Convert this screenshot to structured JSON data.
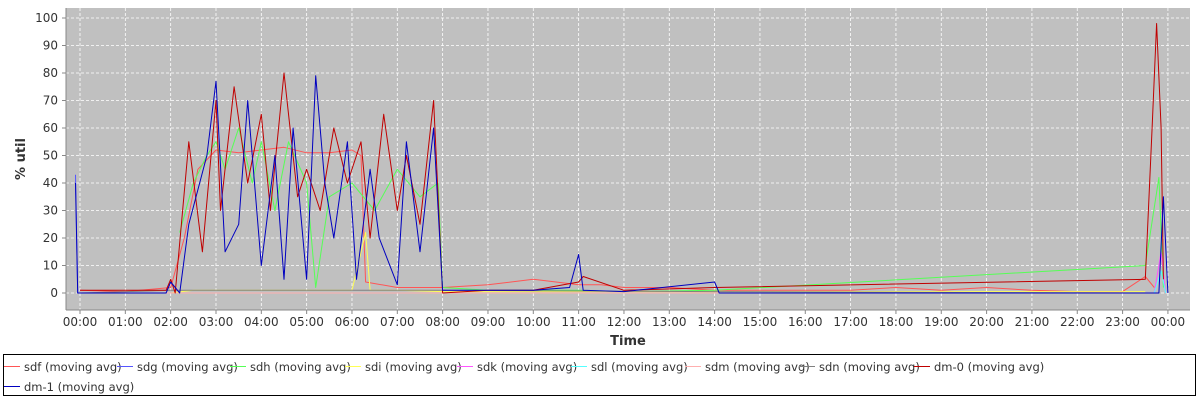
{
  "chart_data": {
    "type": "line",
    "title": "",
    "xlabel": "Time",
    "ylabel": "% util",
    "ylim": [
      0,
      100
    ],
    "xlim_hours": [
      -0.25,
      24.2
    ],
    "grid": true,
    "legend_position": "bottom",
    "y_ticks": [
      0,
      10,
      20,
      30,
      40,
      50,
      60,
      70,
      80,
      90,
      100
    ],
    "x_ticks": [
      "00:00",
      "01:00",
      "02:00",
      "03:00",
      "04:00",
      "05:00",
      "06:00",
      "07:00",
      "08:00",
      "09:00",
      "10:00",
      "11:00",
      "12:00",
      "13:00",
      "14:00",
      "15:00",
      "16:00",
      "17:00",
      "18:00",
      "19:00",
      "20:00",
      "21:00",
      "22:00",
      "23:00",
      "00:00"
    ],
    "series": [
      {
        "name": "sdf (moving avg)",
        "color": "#ff5555",
        "points": [
          [
            0,
            1
          ],
          [
            1,
            0.5
          ],
          [
            2,
            2
          ],
          [
            2.3,
            20
          ],
          [
            2.6,
            45
          ],
          [
            3,
            52
          ],
          [
            3.5,
            51
          ],
          [
            4,
            52
          ],
          [
            4.5,
            53
          ],
          [
            5,
            51
          ],
          [
            5.5,
            51
          ],
          [
            6,
            52
          ],
          [
            6.2,
            50
          ],
          [
            6.3,
            4
          ],
          [
            7,
            2
          ],
          [
            8,
            2
          ],
          [
            9,
            3
          ],
          [
            10,
            5
          ],
          [
            10.5,
            4
          ],
          [
            11,
            3
          ],
          [
            11.5,
            3
          ],
          [
            12,
            2
          ],
          [
            13,
            2
          ],
          [
            14,
            1
          ],
          [
            15,
            1
          ],
          [
            16,
            1
          ],
          [
            17,
            1
          ],
          [
            18,
            2
          ],
          [
            19,
            1
          ],
          [
            20,
            2
          ],
          [
            21,
            1
          ],
          [
            22,
            0.5
          ],
          [
            23,
            0.5
          ],
          [
            23.5,
            6
          ],
          [
            23.7,
            2
          ]
        ]
      },
      {
        "name": "sdg (moving avg)",
        "color": "#5555ff",
        "points": [
          [
            -0.1,
            43
          ],
          [
            -0.05,
            0
          ],
          [
            0,
            0
          ]
        ]
      },
      {
        "name": "sdh (moving avg)",
        "color": "#55ff55",
        "points": [
          [
            2.2,
            22
          ],
          [
            2.5,
            40
          ],
          [
            2.8,
            50
          ],
          [
            3,
            55
          ],
          [
            3.2,
            45
          ],
          [
            3.5,
            60
          ],
          [
            3.8,
            40
          ],
          [
            4,
            55
          ],
          [
            4.3,
            30
          ],
          [
            4.6,
            55
          ],
          [
            5,
            40
          ],
          [
            5.2,
            2
          ],
          [
            5.5,
            35
          ],
          [
            6,
            40
          ],
          [
            6.5,
            30
          ],
          [
            7,
            45
          ],
          [
            7.5,
            35
          ],
          [
            7.9,
            40
          ],
          [
            8,
            2
          ],
          [
            9,
            1
          ],
          [
            10,
            1
          ],
          [
            11,
            1
          ],
          [
            12,
            0.5
          ],
          [
            14,
            1
          ],
          [
            23.5,
            10
          ],
          [
            23.8,
            42
          ],
          [
            23.9,
            2
          ]
        ]
      },
      {
        "name": "sdi (moving avg)",
        "color": "#ffff55",
        "points": [
          [
            0,
            0
          ],
          [
            2,
            0
          ],
          [
            2.5,
            1
          ],
          [
            3,
            1
          ],
          [
            4,
            1
          ],
          [
            5,
            1
          ],
          [
            5.5,
            1
          ],
          [
            6,
            1
          ],
          [
            6.3,
            22
          ],
          [
            6.4,
            1
          ],
          [
            7,
            1
          ],
          [
            8,
            0.5
          ],
          [
            10,
            0.5
          ],
          [
            14,
            0.5
          ],
          [
            23.5,
            0.5
          ]
        ]
      },
      {
        "name": "sdk (moving avg)",
        "color": "#ff55ff",
        "points": [
          [
            23.7,
            0
          ],
          [
            23.85,
            15
          ],
          [
            23.95,
            0
          ]
        ]
      },
      {
        "name": "sdl (moving avg)",
        "color": "#55ffff",
        "points": [
          [
            23.7,
            0
          ],
          [
            23.85,
            8
          ],
          [
            23.95,
            0
          ]
        ]
      },
      {
        "name": "sdm (moving avg)",
        "color": "#ffafaf",
        "points": [
          [
            0,
            0
          ],
          [
            23,
            0
          ]
        ]
      },
      {
        "name": "sdn (moving avg)",
        "color": "#808080",
        "points": [
          [
            0,
            0
          ],
          [
            2,
            1
          ],
          [
            8,
            1
          ],
          [
            14,
            0.5
          ],
          [
            23,
            0
          ]
        ]
      },
      {
        "name": "dm-0 (moving avg)",
        "color": "#c00000",
        "points": [
          [
            0,
            1
          ],
          [
            1.9,
            1
          ],
          [
            2,
            5
          ],
          [
            2.1,
            0
          ],
          [
            2.4,
            55
          ],
          [
            2.7,
            15
          ],
          [
            3,
            70
          ],
          [
            3.1,
            30
          ],
          [
            3.4,
            75
          ],
          [
            3.7,
            40
          ],
          [
            4,
            65
          ],
          [
            4.2,
            30
          ],
          [
            4.5,
            80
          ],
          [
            4.8,
            35
          ],
          [
            5,
            45
          ],
          [
            5.3,
            30
          ],
          [
            5.6,
            60
          ],
          [
            5.9,
            40
          ],
          [
            6.2,
            55
          ],
          [
            6.4,
            20
          ],
          [
            6.7,
            65
          ],
          [
            7,
            30
          ],
          [
            7.2,
            50
          ],
          [
            7.5,
            25
          ],
          [
            7.8,
            70
          ],
          [
            8,
            0
          ],
          [
            9,
            1
          ],
          [
            10,
            1
          ],
          [
            11,
            4
          ],
          [
            11.1,
            6
          ],
          [
            12,
            1
          ],
          [
            14,
            2
          ],
          [
            23.5,
            5
          ],
          [
            23.65,
            60
          ],
          [
            23.75,
            98
          ],
          [
            23.85,
            60
          ],
          [
            23.9,
            5
          ]
        ]
      },
      {
        "name": "dm-1 (moving avg)",
        "color": "#0000c0",
        "points": [
          [
            -0.1,
            40
          ],
          [
            -0.05,
            0
          ],
          [
            0,
            0
          ],
          [
            1.9,
            0
          ],
          [
            2,
            4
          ],
          [
            2.2,
            0
          ],
          [
            2.4,
            25
          ],
          [
            2.8,
            50
          ],
          [
            3,
            77
          ],
          [
            3.2,
            15
          ],
          [
            3.5,
            25
          ],
          [
            3.7,
            70
          ],
          [
            4,
            10
          ],
          [
            4.3,
            50
          ],
          [
            4.5,
            5
          ],
          [
            4.7,
            60
          ],
          [
            5,
            5
          ],
          [
            5.2,
            79
          ],
          [
            5.4,
            40
          ],
          [
            5.6,
            20
          ],
          [
            5.9,
            55
          ],
          [
            6.1,
            5
          ],
          [
            6.4,
            45
          ],
          [
            6.6,
            20
          ],
          [
            7,
            3
          ],
          [
            7.2,
            55
          ],
          [
            7.5,
            15
          ],
          [
            7.8,
            60
          ],
          [
            8,
            1
          ],
          [
            9,
            1
          ],
          [
            10,
            1
          ],
          [
            10.8,
            2
          ],
          [
            11,
            14
          ],
          [
            11.1,
            1
          ],
          [
            12,
            0.5
          ],
          [
            14,
            4
          ],
          [
            14.1,
            0
          ],
          [
            16,
            0
          ],
          [
            23.8,
            0
          ],
          [
            23.9,
            35
          ],
          [
            24,
            0
          ]
        ]
      }
    ],
    "legend": [
      {
        "label": "sdf (moving avg)",
        "color": "#ff5555"
      },
      {
        "label": "sdg (moving avg)",
        "color": "#5555ff"
      },
      {
        "label": "sdh (moving avg)",
        "color": "#55ff55"
      },
      {
        "label": "sdi (moving avg)",
        "color": "#ffff55"
      },
      {
        "label": "sdk (moving avg)",
        "color": "#ff55ff"
      },
      {
        "label": "sdl (moving avg)",
        "color": "#55ffff"
      },
      {
        "label": "sdm (moving avg)",
        "color": "#ffafaf"
      },
      {
        "label": "sdn (moving avg)",
        "color": "#808080"
      },
      {
        "label": "dm-0 (moving avg)",
        "color": "#c00000"
      },
      {
        "label": "dm-1 (moving avg)",
        "color": "#0000c0"
      }
    ],
    "colors": {
      "plot_background": "#c0c0c0",
      "gridline": "#ffffff"
    }
  }
}
